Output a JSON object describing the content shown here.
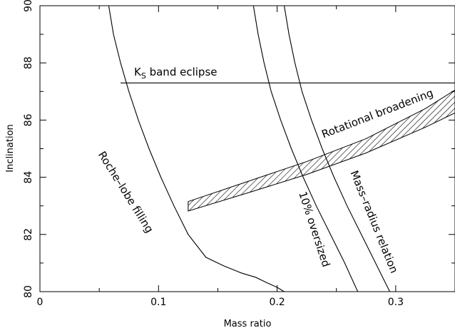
{
  "chart_data": {
    "type": "line",
    "title": "",
    "xlabel": "Mass ratio",
    "ylabel": "Inclination",
    "xlim": [
      0,
      0.35
    ],
    "ylim": [
      80,
      90
    ],
    "grid": false,
    "x_ticks": [
      0,
      0.1,
      0.2,
      0.3
    ],
    "x_tick_labels": [
      "0",
      "0.1",
      "0.2",
      "0.3"
    ],
    "y_ticks": [
      80,
      82,
      84,
      86,
      88,
      90
    ],
    "y_tick_labels": [
      "80",
      "82",
      "84",
      "86",
      "88",
      "90"
    ],
    "series": [
      {
        "name": "Roche–lobe filling",
        "x": [
          0.058,
          0.062,
          0.068,
          0.075,
          0.083,
          0.092,
          0.102,
          0.113,
          0.125,
          0.14,
          0.155,
          0.17,
          0.182,
          0.192,
          0.2,
          0.206
        ],
        "y": [
          90.0,
          89.0,
          88.0,
          87.0,
          86.0,
          85.0,
          84.0,
          83.0,
          82.0,
          81.2,
          80.9,
          80.65,
          80.5,
          80.3,
          80.15,
          80.0
        ]
      },
      {
        "name": "10% oversized",
        "x": [
          0.18,
          0.184,
          0.189,
          0.195,
          0.203,
          0.212,
          0.222,
          0.233,
          0.245,
          0.257,
          0.268
        ],
        "y": [
          90.0,
          89.0,
          88.0,
          87.0,
          86.0,
          85.0,
          84.0,
          83.0,
          82.0,
          81.0,
          80.0
        ]
      },
      {
        "name": "Mass–radius relation",
        "x": [
          0.206,
          0.21,
          0.215,
          0.221,
          0.229,
          0.238,
          0.248,
          0.259,
          0.271,
          0.283,
          0.295
        ],
        "y": [
          90.0,
          89.0,
          88.0,
          87.0,
          86.0,
          85.0,
          84.0,
          83.0,
          82.0,
          81.0,
          80.0
        ]
      },
      {
        "name": "K_S band eclipse",
        "x": [
          0.068,
          0.35
        ],
        "y": [
          87.3,
          87.3
        ]
      }
    ],
    "bands": [
      {
        "name": "Rotational broadening",
        "x": [
          0.125,
          0.175,
          0.225,
          0.275,
          0.325,
          0.35
        ],
        "y_low": [
          82.82,
          83.45,
          84.1,
          84.85,
          85.75,
          86.25
        ],
        "y_high": [
          83.15,
          83.85,
          84.55,
          85.35,
          86.4,
          87.05
        ]
      }
    ],
    "annotations": [
      {
        "text": "Roche–lobe filling",
        "series": "Roche–lobe filling"
      },
      {
        "text": "10% oversized",
        "series": "10% oversized"
      },
      {
        "text": "Mass–radius relation",
        "series": "Mass–radius relation"
      },
      {
        "text": "Rotational broadening",
        "series": "Rotational broadening"
      },
      {
        "text_main": "K",
        "text_sub": "S",
        "text_rest": " band eclipse",
        "series": "K_S band eclipse"
      }
    ]
  }
}
